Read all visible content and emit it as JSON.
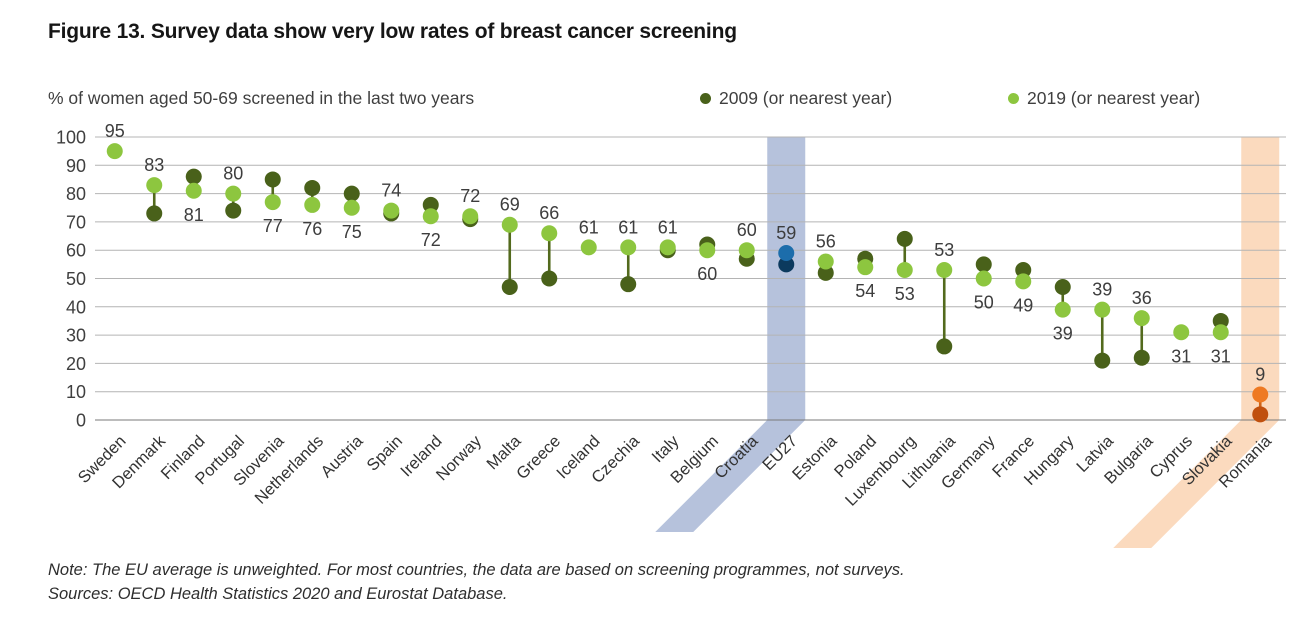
{
  "figure": {
    "title": "Figure 13. Survey data show very low rates of breast cancer screening",
    "subtitle": "% of women aged 50-69 screened in the last two years",
    "note": "Note: The EU average is unweighted. For most countries, the data are based on screening programmes, not surveys.",
    "sources": "Sources: OECD Health Statistics 2020 and Eurostat Database."
  },
  "legend": [
    {
      "label": "2009 (or nearest year)",
      "color": "#49611a"
    },
    {
      "label": "2019 (or nearest year)",
      "color": "#8dc63f"
    }
  ],
  "chart_data": {
    "type": "scatter",
    "variant": "dumbbell-dot-plot",
    "title": "Figure 13. Survey data show very low rates of breast cancer screening",
    "xlabel": "",
    "ylabel": "% of women aged 50-69 screened in the last two years",
    "ylim": [
      0,
      100
    ],
    "yticks": [
      0,
      10,
      20,
      30,
      40,
      50,
      60,
      70,
      80,
      90,
      100
    ],
    "grid": true,
    "legend_position": "top-right",
    "categories": [
      "Sweden",
      "Denmark",
      "Finland",
      "Portugal",
      "Slovenia",
      "Netherlands",
      "Austria",
      "Spain",
      "Ireland",
      "Norway",
      "Malta",
      "Greece",
      "Iceland",
      "Czechia",
      "Italy",
      "Belgium",
      "Croatia",
      "EU27",
      "Estonia",
      "Poland",
      "Luxembourg",
      "Lithuania",
      "Germany",
      "France",
      "Hungary",
      "Latvia",
      "Bulgaria",
      "Cyprus",
      "Slovakia",
      "Romania"
    ],
    "series": [
      {
        "name": "2009 (or nearest year)",
        "values": [
          null,
          73,
          86,
          74,
          85,
          82,
          80,
          73,
          76,
          71,
          47,
          50,
          null,
          48,
          60,
          62,
          57,
          55,
          52,
          57,
          64,
          26,
          55,
          53,
          47,
          21,
          22,
          null,
          35,
          2
        ]
      },
      {
        "name": "2019 (or nearest year)",
        "values": [
          95,
          83,
          81,
          80,
          77,
          76,
          75,
          74,
          72,
          72,
          69,
          66,
          61,
          61,
          61,
          60,
          60,
          59,
          56,
          54,
          53,
          53,
          50,
          49,
          39,
          39,
          36,
          31,
          31,
          9
        ]
      }
    ],
    "value_labels": {
      "labeled_series": "2019 (or nearest year)",
      "position": [
        "above",
        "above",
        "below",
        "above",
        "below",
        "below",
        "below",
        "above",
        "below",
        "above",
        "above",
        "above",
        "above",
        "above",
        "above",
        "below",
        "above",
        "above",
        "above",
        "below",
        "below",
        "above",
        "below",
        "below",
        "below",
        "above",
        "above",
        "below",
        "below",
        "above"
      ]
    },
    "highlighted_categories": [
      {
        "category": "EU27",
        "band_color": "#b6c2dc",
        "dot_2019": "#1c6dab",
        "dot_2009": "#0c3a5e",
        "line": "#0c3a5e"
      },
      {
        "category": "Romania",
        "band_color": "#fbdabe",
        "dot_2019": "#ee7a23",
        "dot_2009": "#c0500e",
        "line": "#d06417"
      }
    ],
    "colors": {
      "dot_2009": "#49611a",
      "dot_2019": "#8dc63f",
      "connector": "#536a1d",
      "gridline": "#b4b4b4",
      "axis_line": "#7a7a7a",
      "tick_text": "#3f3f3f",
      "value_text": "#3d3d3d",
      "category_text": "#333333"
    }
  }
}
